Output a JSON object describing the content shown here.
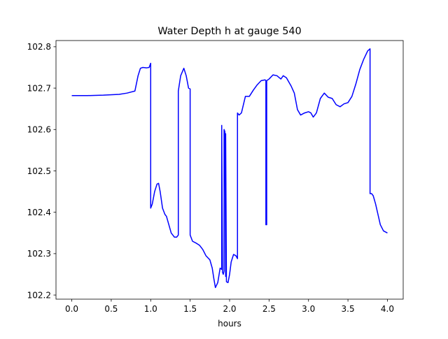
{
  "chart_data": {
    "type": "line",
    "title": "Water Depth h at gauge 540",
    "xlabel": "hours",
    "ylabel": "",
    "xlim": [
      -0.2,
      4.2
    ],
    "ylim": [
      102.19,
      102.815
    ],
    "xticks": [
      0.0,
      0.5,
      1.0,
      1.5,
      2.0,
      2.5,
      3.0,
      3.5,
      4.0
    ],
    "xtick_labels": [
      "0.0",
      "0.5",
      "1.0",
      "1.5",
      "2.0",
      "2.5",
      "3.0",
      "3.5",
      "4.0"
    ],
    "yticks": [
      102.2,
      102.3,
      102.4,
      102.5,
      102.6,
      102.7,
      102.8
    ],
    "ytick_labels": [
      "102.2",
      "102.3",
      "102.4",
      "102.5",
      "102.6",
      "102.7",
      "102.8"
    ],
    "grid": false,
    "legend": "none",
    "series": [
      {
        "color": "#0000ff",
        "x": [
          0.0,
          0.2,
          0.4,
          0.6,
          0.7,
          0.8,
          0.84,
          0.87,
          0.9,
          0.95,
          0.98,
          1.0,
          1.0,
          1.02,
          1.05,
          1.08,
          1.1,
          1.12,
          1.15,
          1.18,
          1.2,
          1.23,
          1.26,
          1.3,
          1.33,
          1.35,
          1.35,
          1.38,
          1.42,
          1.45,
          1.48,
          1.5,
          1.5,
          1.53,
          1.58,
          1.62,
          1.66,
          1.7,
          1.75,
          1.78,
          1.8,
          1.82,
          1.85,
          1.88,
          1.9,
          1.9,
          1.91,
          1.92,
          1.93,
          1.93,
          1.94,
          1.95,
          1.95,
          1.96,
          1.98,
          2.0,
          2.02,
          2.05,
          2.08,
          2.1,
          2.1,
          2.12,
          2.15,
          2.2,
          2.25,
          2.3,
          2.35,
          2.4,
          2.45,
          2.46,
          2.46,
          2.47,
          2.47,
          2.5,
          2.55,
          2.6,
          2.65,
          2.68,
          2.72,
          2.78,
          2.82,
          2.86,
          2.9,
          2.95,
          3.0,
          3.03,
          3.06,
          3.1,
          3.15,
          3.2,
          3.25,
          3.3,
          3.35,
          3.4,
          3.45,
          3.5,
          3.55,
          3.6,
          3.65,
          3.7,
          3.75,
          3.78,
          3.78,
          3.8,
          3.82,
          3.85,
          3.88,
          3.91,
          3.95,
          4.0
        ],
        "y": [
          102.682,
          102.682,
          102.683,
          102.685,
          102.688,
          102.693,
          102.73,
          102.748,
          102.75,
          102.749,
          102.75,
          102.76,
          102.41,
          102.42,
          102.45,
          102.468,
          102.47,
          102.45,
          102.41,
          102.395,
          102.39,
          102.37,
          102.35,
          102.34,
          102.34,
          102.345,
          102.693,
          102.73,
          102.748,
          102.73,
          102.7,
          102.698,
          102.345,
          102.33,
          102.325,
          102.32,
          102.31,
          102.295,
          102.285,
          102.265,
          102.24,
          102.218,
          102.23,
          102.265,
          102.262,
          102.61,
          102.255,
          102.25,
          102.258,
          102.6,
          102.595,
          102.245,
          102.59,
          102.232,
          102.23,
          102.25,
          102.28,
          102.298,
          102.295,
          102.288,
          102.64,
          102.635,
          102.64,
          102.68,
          102.68,
          102.695,
          102.708,
          102.718,
          102.72,
          102.718,
          102.37,
          102.37,
          102.718,
          102.722,
          102.732,
          102.73,
          102.722,
          102.73,
          102.725,
          102.705,
          102.688,
          102.648,
          102.635,
          102.64,
          102.643,
          102.64,
          102.63,
          102.64,
          102.675,
          102.688,
          102.678,
          102.675,
          102.66,
          102.655,
          102.662,
          102.665,
          102.68,
          102.71,
          102.745,
          102.77,
          102.79,
          102.795,
          102.445,
          102.445,
          102.44,
          102.42,
          102.395,
          102.37,
          102.355,
          102.35
        ]
      }
    ]
  }
}
